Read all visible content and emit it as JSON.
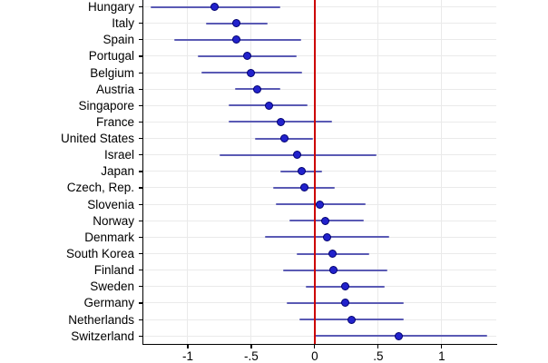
{
  "chart_data": {
    "type": "scatter",
    "subtype": "horizontal-dot-plot-with-confidence-intervals",
    "orientation": "horizontal",
    "title": "",
    "xlabel": "",
    "ylabel": "",
    "legend": "none",
    "grid": "both",
    "categories": [
      "Hungary",
      "Italy",
      "Spain",
      "Portugal",
      "Belgium",
      "Austria",
      "Singapore",
      "France",
      "United States",
      "Israel",
      "Japan",
      "Czech, Rep.",
      "Slovenia",
      "Norway",
      "Denmark",
      "South Korea",
      "Finland",
      "Sweden",
      "Germany",
      "Netherlands",
      "Switzerland"
    ],
    "series": [
      {
        "name": "point-estimate",
        "values": [
          -0.79,
          -0.62,
          -0.62,
          -0.53,
          -0.5,
          -0.45,
          -0.36,
          -0.27,
          -0.24,
          -0.14,
          -0.1,
          -0.08,
          0.04,
          0.08,
          0.1,
          0.14,
          0.15,
          0.24,
          0.24,
          0.29,
          0.66
        ]
      },
      {
        "name": "ci-low",
        "values": [
          -1.29,
          -0.86,
          -1.11,
          -0.92,
          -0.89,
          -0.63,
          -0.68,
          -0.68,
          -0.47,
          -0.75,
          -0.27,
          -0.33,
          -0.31,
          -0.2,
          -0.39,
          -0.14,
          -0.25,
          -0.07,
          -0.22,
          -0.12,
          0.0
        ]
      },
      {
        "name": "ci-high",
        "values": [
          -0.27,
          -0.37,
          -0.11,
          -0.14,
          -0.1,
          -0.27,
          -0.06,
          0.14,
          -0.01,
          0.49,
          0.06,
          0.16,
          0.4,
          0.39,
          0.59,
          0.43,
          0.57,
          0.55,
          0.7,
          0.7,
          1.36
        ]
      }
    ],
    "x_tick_labels": [
      "-1",
      "-.5",
      "0",
      ".5",
      "1"
    ],
    "x_tick_values": [
      -1,
      -0.5,
      0,
      0.5,
      1
    ],
    "xlim": [
      -1.35,
      1.43
    ],
    "reference_line_x": 0,
    "colors": {
      "marker_fill": "#2222cc",
      "marker_edge": "#000070",
      "ci_line": "#5a5ab4",
      "reference_line": "#cc0000",
      "gridline": "#eaeaea",
      "axis": "#000000",
      "text": "#000000",
      "background": "#ffffff"
    }
  }
}
